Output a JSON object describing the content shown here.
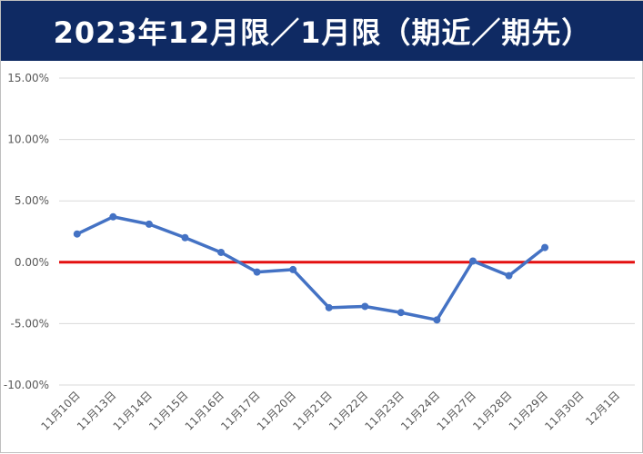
{
  "title": "2023年12月限／1月限（期近／期先）",
  "colors": {
    "title_bg": "#0f2a63",
    "title_text": "#ffffff",
    "series": "#4472c4",
    "zero_line": "#e31010",
    "grid": "#d9d9d9"
  },
  "chart_data": {
    "type": "line",
    "title": "",
    "xlabel": "",
    "ylabel": "",
    "categories": [
      "11月10日",
      "11月13日",
      "11月14日",
      "11月15日",
      "11月16日",
      "11月17日",
      "11月20日",
      "11月21日",
      "11月22日",
      "11月23日",
      "11月24日",
      "11月27日",
      "11月28日",
      "11月29日",
      "11月30日",
      "12月1日"
    ],
    "series": [
      {
        "values": [
          0.023,
          0.037,
          0.031,
          0.02,
          0.008,
          -0.008,
          -0.006,
          -0.037,
          -0.036,
          -0.041,
          -0.047,
          0.001,
          -0.011,
          0.012,
          null,
          null
        ]
      }
    ],
    "ylim": [
      -0.1,
      0.15
    ],
    "yticks": [
      -0.1,
      -0.05,
      0.0,
      0.05,
      0.1,
      0.15
    ],
    "ytick_labels": [
      "-10.00%",
      "-5.00%",
      "0.00%",
      "5.00%",
      "10.00%",
      "15.00%"
    ],
    "reference_line": {
      "y": 0.0
    },
    "grid": true,
    "legend": false
  }
}
